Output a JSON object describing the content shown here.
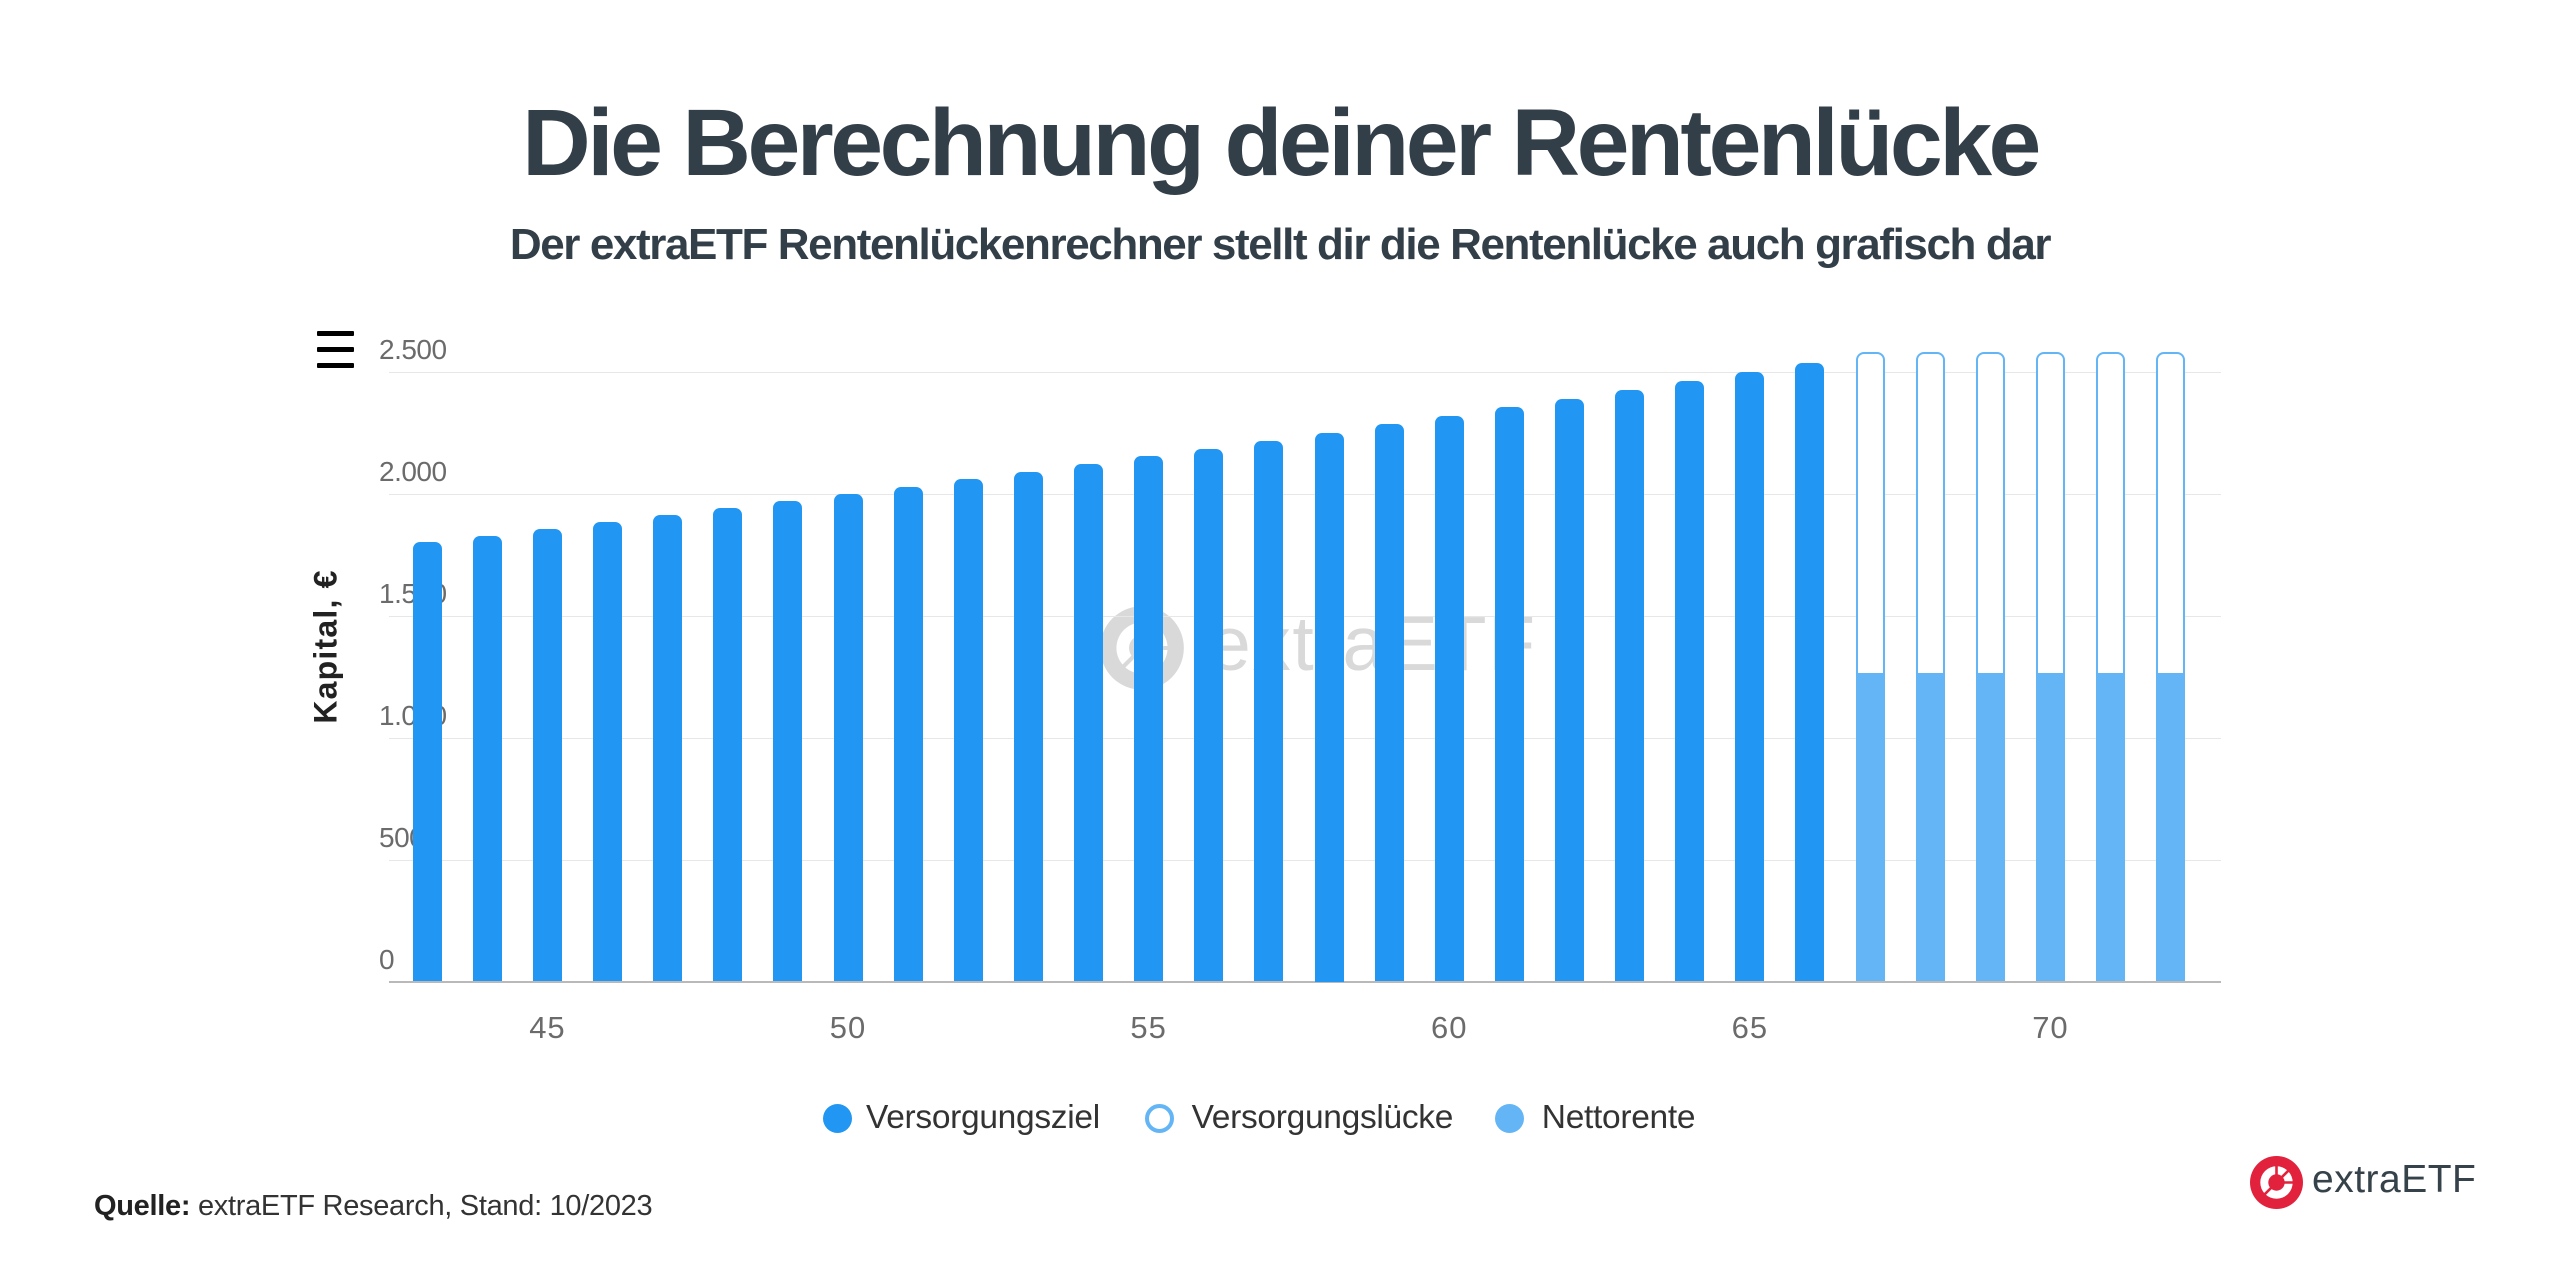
{
  "title": "Die Berechnung deiner Rentenlücke",
  "subtitle": "Der extraETF Rentenlückenrechner stellt dir die Rentenlücke auch grafisch dar",
  "menu_icon": "hamburger-icon",
  "chart_data": {
    "type": "bar",
    "stacked": true,
    "title": "",
    "xlabel": "",
    "ylabel": "Kapital, €",
    "ylim": [
      0,
      2580
    ],
    "yticks": [
      0,
      500,
      1000,
      1500,
      2000,
      2500
    ],
    "ytick_labels": [
      "0",
      "500",
      "1.000",
      "1.500",
      "2.000",
      "2.500"
    ],
    "xticks": [
      45,
      50,
      55,
      60,
      65,
      70
    ],
    "x": [
      43,
      44,
      45,
      46,
      47,
      48,
      49,
      50,
      51,
      52,
      53,
      54,
      55,
      56,
      57,
      58,
      59,
      60,
      61,
      62,
      63,
      64,
      65,
      66,
      67,
      68,
      69,
      70,
      71,
      72
    ],
    "grid": true,
    "legend_position": "bottom",
    "series": [
      {
        "name": "Versorgungsziel",
        "color": "#2196f3",
        "style": "solid",
        "values": [
          1800,
          1827,
          1854,
          1882,
          1910,
          1939,
          1968,
          1998,
          2028,
          2058,
          2089,
          2120,
          2152,
          2184,
          2217,
          2250,
          2284,
          2318,
          2353,
          2389,
          2424,
          2461,
          2498,
          2535,
          null,
          null,
          null,
          null,
          null,
          null
        ]
      },
      {
        "name": "Versorgungslücke",
        "color": "#64b5f6",
        "style": "outline",
        "values": [
          null,
          null,
          null,
          null,
          null,
          null,
          null,
          null,
          null,
          null,
          null,
          null,
          null,
          null,
          null,
          null,
          null,
          null,
          null,
          null,
          null,
          null,
          null,
          null,
          1325,
          1325,
          1325,
          1325,
          1325,
          1325
        ]
      },
      {
        "name": "Nettorente",
        "color": "#64b5f6",
        "style": "solid-light",
        "values": [
          null,
          null,
          null,
          null,
          null,
          null,
          null,
          null,
          null,
          null,
          null,
          null,
          null,
          null,
          null,
          null,
          null,
          null,
          null,
          null,
          null,
          null,
          null,
          null,
          1255,
          1255,
          1255,
          1255,
          1255,
          1255
        ]
      }
    ]
  },
  "legend": [
    {
      "label": "Versorgungsziel",
      "marker": "solid-dot",
      "color": "#2196f3"
    },
    {
      "label": "Versorgungslücke",
      "marker": "outline-dot",
      "color": "#64b5f6"
    },
    {
      "label": "Nettorente",
      "marker": "solid-dot",
      "color": "#64b5f6"
    }
  ],
  "watermark": {
    "text": "extraETF",
    "color": "#d9d9d9"
  },
  "source": {
    "label": "Quelle:",
    "text": " extraETF Research, Stand: 10/2023"
  },
  "brand": {
    "name": "extraETF",
    "icon_color": "#e2223c",
    "text_color": "#36424a"
  }
}
